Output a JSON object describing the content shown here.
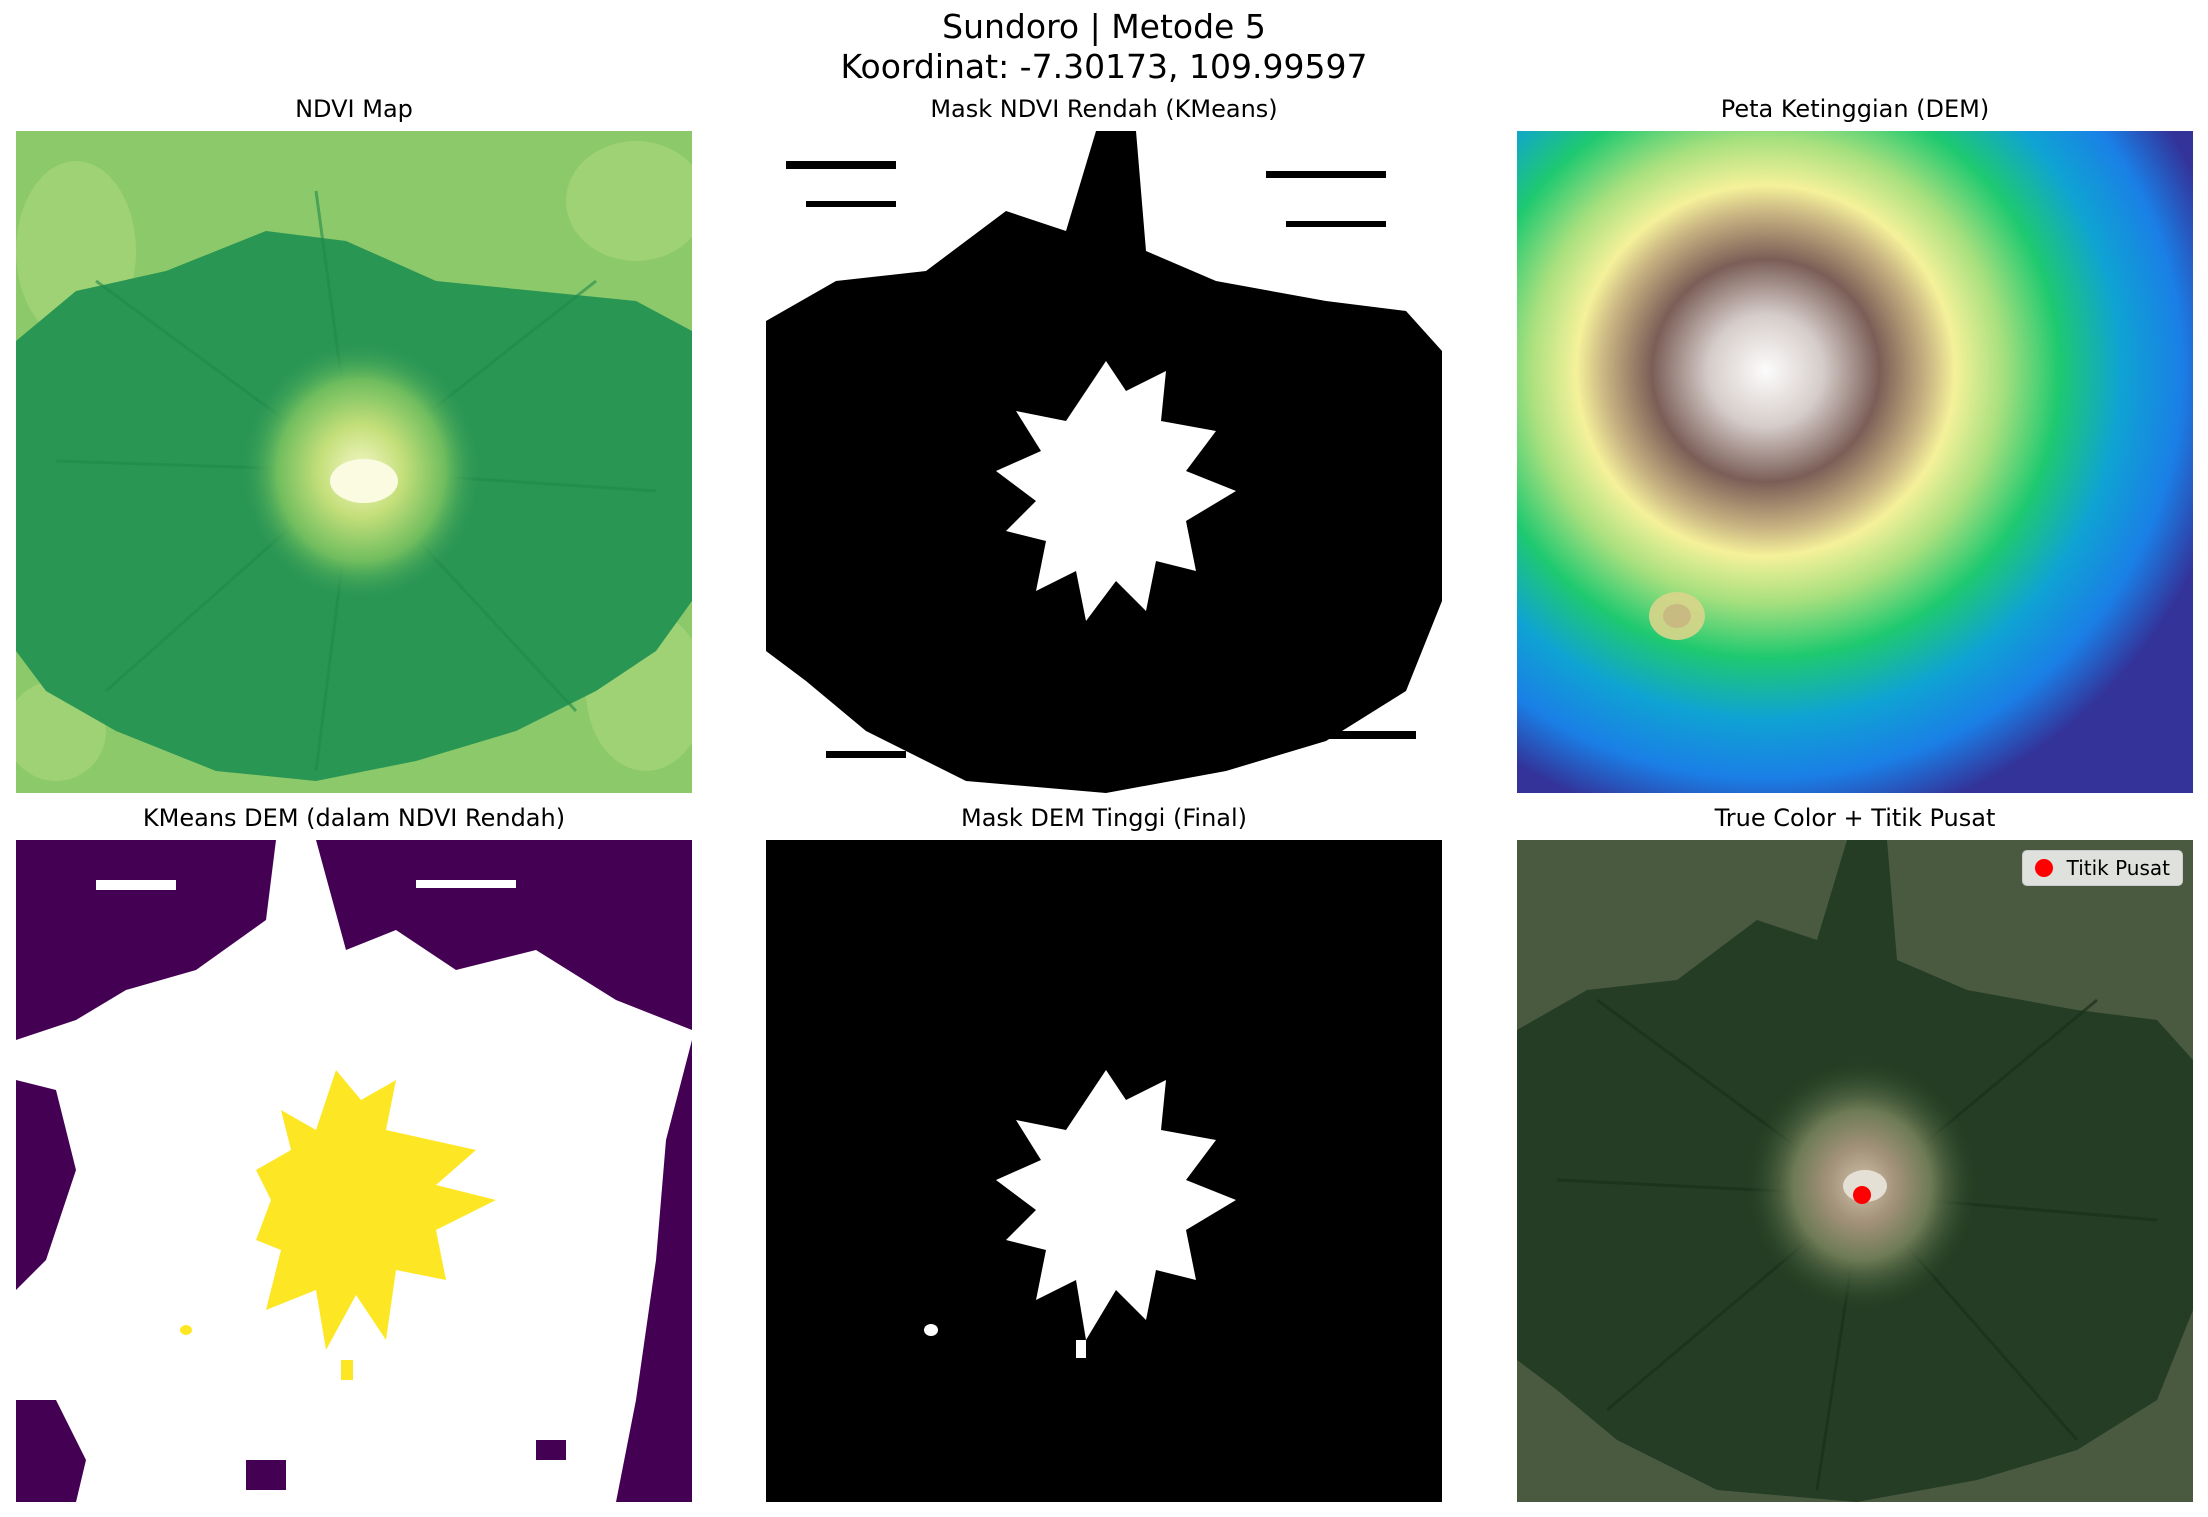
{
  "suptitle": {
    "line1": "Sundoro | Metode 5",
    "line2": "Koordinat: -7.30173, 109.99597"
  },
  "panels": [
    {
      "title": "NDVI Map",
      "kind": "ndvi"
    },
    {
      "title": "Mask NDVI Rendah (KMeans)",
      "kind": "mask-ndvi"
    },
    {
      "title": "Peta Ketinggian (DEM)",
      "kind": "dem",
      "colormap": "terrain"
    },
    {
      "title": "KMeans DEM (dalam NDVI Rendah)",
      "kind": "kmeans-dem",
      "colors": [
        "#440154",
        "#ffffff",
        "#fde725"
      ]
    },
    {
      "title": "Mask DEM Tinggi (Final)",
      "kind": "mask-final"
    },
    {
      "title": "True Color + Titik Pusat",
      "kind": "truecolor"
    }
  ],
  "legend": {
    "label": "Titik Pusat",
    "marker_color": "#ff0000",
    "marker_icon": "red-dot-icon"
  }
}
